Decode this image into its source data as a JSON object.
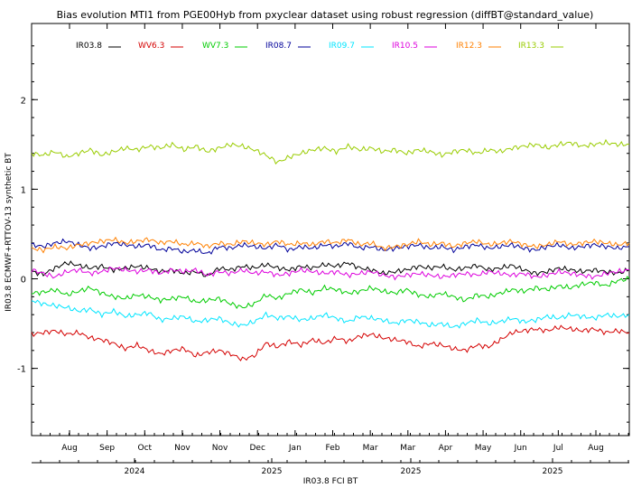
{
  "chart_data": {
    "type": "line",
    "title": "Bias evolution MTI1 from PGE00Hyb from pxyclear dataset using robust regression (diffBT@standard_value)",
    "xlabel": "IR03.8 FCI BT",
    "ylabel": "IR03.8 ECMWF+RTTOV-13 synthetic BT",
    "ylim": [
      -1.75,
      2.85
    ],
    "y_ticks": [
      "2",
      "1",
      "0",
      "-1"
    ],
    "y_tick_values": [
      2,
      1,
      0,
      -1
    ],
    "month_ticks": [
      "Aug",
      "Sep",
      "Oct",
      "Nov",
      "Nov",
      "Dec",
      "Jan",
      "Feb",
      "Mar",
      "Mar",
      "Apr",
      "May",
      "Jun",
      "Jul",
      "Aug"
    ],
    "year_ticks": [
      "2024",
      "2025",
      "2025",
      "2025"
    ],
    "grid": false,
    "legend_position": "top",
    "series": [
      {
        "name": "IR03.8",
        "color": "#000000",
        "values": [
          0.08,
          0.05,
          0.12,
          0.18,
          0.15,
          0.12,
          0.14,
          0.1,
          0.12,
          0.14,
          0.12,
          0.08,
          0.1,
          0.06,
          0.08,
          0.03,
          0.12,
          0.1,
          0.14,
          0.12,
          0.16,
          0.12,
          0.1,
          0.14,
          0.12,
          0.16,
          0.14,
          0.18,
          0.12,
          0.1,
          0.06,
          0.08,
          0.1,
          0.14,
          0.12,
          0.14,
          0.1,
          0.12,
          0.15,
          0.1,
          0.12,
          0.15,
          0.1,
          0.06,
          0.08,
          0.12,
          0.1,
          0.08,
          0.1,
          0.08,
          0.06,
          0.1
        ]
      },
      {
        "name": "WV6.3",
        "color": "#d40000",
        "values": [
          -0.62,
          -0.6,
          -0.58,
          -0.62,
          -0.6,
          -0.66,
          -0.68,
          -0.72,
          -0.78,
          -0.74,
          -0.8,
          -0.84,
          -0.8,
          -0.78,
          -0.86,
          -0.82,
          -0.8,
          -0.84,
          -0.9,
          -0.86,
          -0.72,
          -0.76,
          -0.7,
          -0.74,
          -0.68,
          -0.72,
          -0.66,
          -0.7,
          -0.64,
          -0.62,
          -0.66,
          -0.68,
          -0.7,
          -0.76,
          -0.72,
          -0.74,
          -0.78,
          -0.8,
          -0.74,
          -0.76,
          -0.68,
          -0.6,
          -0.58,
          -0.56,
          -0.58,
          -0.54,
          -0.56,
          -0.58,
          -0.56,
          -0.6,
          -0.58,
          -0.6
        ]
      },
      {
        "name": "WV7.3",
        "color": "#00cc00",
        "values": [
          -0.16,
          -0.15,
          -0.12,
          -0.18,
          -0.14,
          -0.1,
          -0.16,
          -0.2,
          -0.22,
          -0.18,
          -0.2,
          -0.24,
          -0.22,
          -0.2,
          -0.26,
          -0.24,
          -0.22,
          -0.28,
          -0.32,
          -0.28,
          -0.18,
          -0.22,
          -0.16,
          -0.12,
          -0.16,
          -0.1,
          -0.12,
          -0.16,
          -0.14,
          -0.1,
          -0.14,
          -0.16,
          -0.12,
          -0.18,
          -0.2,
          -0.16,
          -0.2,
          -0.24,
          -0.18,
          -0.2,
          -0.16,
          -0.12,
          -0.14,
          -0.1,
          -0.12,
          -0.08,
          -0.1,
          -0.06,
          -0.04,
          -0.08,
          -0.02,
          0.0
        ]
      },
      {
        "name": "IR08.7",
        "color": "#000099",
        "values": [
          0.38,
          0.36,
          0.4,
          0.42,
          0.38,
          0.34,
          0.36,
          0.4,
          0.38,
          0.36,
          0.38,
          0.32,
          0.34,
          0.3,
          0.32,
          0.28,
          0.36,
          0.34,
          0.38,
          0.36,
          0.34,
          0.38,
          0.32,
          0.36,
          0.34,
          0.38,
          0.36,
          0.4,
          0.34,
          0.36,
          0.32,
          0.34,
          0.36,
          0.38,
          0.34,
          0.36,
          0.32,
          0.36,
          0.38,
          0.34,
          0.36,
          0.38,
          0.34,
          0.32,
          0.36,
          0.38,
          0.34,
          0.36,
          0.38,
          0.36,
          0.34,
          0.36
        ]
      },
      {
        "name": "IR09.7",
        "color": "#00e5ff",
        "values": [
          -0.24,
          -0.28,
          -0.3,
          -0.32,
          -0.36,
          -0.34,
          -0.4,
          -0.36,
          -0.42,
          -0.4,
          -0.38,
          -0.46,
          -0.44,
          -0.42,
          -0.48,
          -0.46,
          -0.44,
          -0.5,
          -0.52,
          -0.48,
          -0.4,
          -0.44,
          -0.42,
          -0.46,
          -0.44,
          -0.4,
          -0.44,
          -0.48,
          -0.42,
          -0.44,
          -0.46,
          -0.5,
          -0.46,
          -0.48,
          -0.52,
          -0.5,
          -0.54,
          -0.5,
          -0.46,
          -0.5,
          -0.48,
          -0.44,
          -0.48,
          -0.46,
          -0.42,
          -0.44,
          -0.4,
          -0.42,
          -0.44,
          -0.4,
          -0.42,
          -0.4
        ]
      },
      {
        "name": "IR10.5",
        "color": "#dd00dd",
        "values": [
          0.1,
          0.06,
          0.02,
          0.08,
          0.1,
          0.06,
          0.08,
          0.12,
          0.1,
          0.08,
          0.1,
          0.06,
          0.1,
          0.08,
          0.1,
          0.04,
          0.08,
          0.06,
          0.1,
          0.06,
          0.08,
          0.04,
          0.06,
          0.1,
          0.08,
          0.06,
          0.08,
          0.04,
          0.06,
          0.08,
          0.04,
          0.02,
          0.04,
          0.06,
          0.04,
          0.02,
          0.04,
          0.06,
          0.04,
          0.08,
          0.06,
          0.04,
          0.06,
          0.02,
          0.04,
          0.08,
          0.06,
          0.04,
          0.02,
          0.06,
          0.08,
          0.1
        ]
      },
      {
        "name": "IR12.3",
        "color": "#ff8000",
        "values": [
          0.34,
          0.32,
          0.36,
          0.34,
          0.38,
          0.4,
          0.42,
          0.44,
          0.4,
          0.42,
          0.44,
          0.4,
          0.42,
          0.38,
          0.4,
          0.36,
          0.4,
          0.38,
          0.42,
          0.4,
          0.38,
          0.42,
          0.38,
          0.4,
          0.38,
          0.42,
          0.4,
          0.44,
          0.38,
          0.4,
          0.34,
          0.36,
          0.38,
          0.42,
          0.38,
          0.4,
          0.36,
          0.4,
          0.42,
          0.38,
          0.4,
          0.42,
          0.38,
          0.36,
          0.38,
          0.42,
          0.38,
          0.4,
          0.42,
          0.4,
          0.38,
          0.4
        ]
      },
      {
        "name": "IR13.3",
        "color": "#99cc00",
        "values": [
          1.4,
          1.38,
          1.42,
          1.36,
          1.4,
          1.44,
          1.38,
          1.42,
          1.46,
          1.44,
          1.48,
          1.46,
          1.5,
          1.44,
          1.48,
          1.42,
          1.46,
          1.5,
          1.48,
          1.44,
          1.38,
          1.3,
          1.36,
          1.4,
          1.44,
          1.46,
          1.42,
          1.48,
          1.44,
          1.46,
          1.42,
          1.44,
          1.4,
          1.44,
          1.42,
          1.38,
          1.42,
          1.44,
          1.4,
          1.44,
          1.42,
          1.46,
          1.48,
          1.5,
          1.46,
          1.5,
          1.52,
          1.48,
          1.5,
          1.52,
          1.5,
          1.5
        ]
      }
    ]
  }
}
